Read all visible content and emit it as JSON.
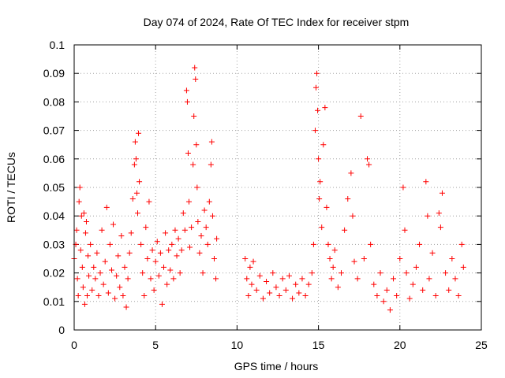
{
  "chart_data": {
    "type": "scatter",
    "title": "Day 074 of 2024, Rate Of TEC Index for receiver stpm",
    "xlabel": "GPS time / hours",
    "ylabel": "ROTI / TECUs",
    "xlim": [
      0,
      25
    ],
    "ylim": [
      0,
      0.1
    ],
    "xticks": [
      0,
      5,
      10,
      15,
      20,
      25
    ],
    "xtick_labels": [
      "0",
      "5",
      "10",
      "15",
      "20",
      "25"
    ],
    "yticks": [
      0,
      0.01,
      0.02,
      0.03,
      0.04,
      0.05,
      0.06,
      0.07,
      0.08,
      0.09,
      0.1
    ],
    "ytick_labels": [
      "0",
      "0.01",
      "0.02",
      "0.03",
      "0.04",
      "0.05",
      "0.06",
      "0.07",
      "0.08",
      "0.09",
      "0.1"
    ],
    "grid": true,
    "marker": "plus",
    "color": "#ff0000",
    "series": [
      {
        "name": "ROTI",
        "points": [
          [
            0.0,
            0.025
          ],
          [
            0.1,
            0.03
          ],
          [
            0.15,
            0.035
          ],
          [
            0.2,
            0.018
          ],
          [
            0.25,
            0.012
          ],
          [
            0.3,
            0.045
          ],
          [
            0.35,
            0.05
          ],
          [
            0.4,
            0.028
          ],
          [
            0.45,
            0.04
          ],
          [
            0.5,
            0.022
          ],
          [
            0.55,
            0.015
          ],
          [
            0.6,
            0.041
          ],
          [
            0.65,
            0.009
          ],
          [
            0.7,
            0.034
          ],
          [
            0.75,
            0.038
          ],
          [
            0.8,
            0.012
          ],
          [
            0.85,
            0.026
          ],
          [
            0.9,
            0.019
          ],
          [
            1.0,
            0.03
          ],
          [
            1.1,
            0.014
          ],
          [
            1.2,
            0.022
          ],
          [
            1.3,
            0.018
          ],
          [
            1.4,
            0.027
          ],
          [
            1.5,
            0.012
          ],
          [
            1.6,
            0.02
          ],
          [
            1.7,
            0.035
          ],
          [
            1.8,
            0.016
          ],
          [
            1.9,
            0.024
          ],
          [
            2.0,
            0.043
          ],
          [
            2.1,
            0.013
          ],
          [
            2.2,
            0.03
          ],
          [
            2.3,
            0.021
          ],
          [
            2.4,
            0.037
          ],
          [
            2.5,
            0.011
          ],
          [
            2.6,
            0.019
          ],
          [
            2.7,
            0.026
          ],
          [
            2.8,
            0.015
          ],
          [
            2.9,
            0.033
          ],
          [
            3.0,
            0.012
          ],
          [
            3.1,
            0.022
          ],
          [
            3.2,
            0.008
          ],
          [
            3.3,
            0.018
          ],
          [
            3.4,
            0.027
          ],
          [
            3.5,
            0.034
          ],
          [
            3.6,
            0.046
          ],
          [
            3.7,
            0.058
          ],
          [
            3.75,
            0.066
          ],
          [
            3.8,
            0.06
          ],
          [
            3.85,
            0.048
          ],
          [
            3.9,
            0.041
          ],
          [
            3.95,
            0.069
          ],
          [
            4.0,
            0.052
          ],
          [
            4.1,
            0.03
          ],
          [
            4.2,
            0.02
          ],
          [
            4.3,
            0.012
          ],
          [
            4.4,
            0.036
          ],
          [
            4.5,
            0.025
          ],
          [
            4.6,
            0.045
          ],
          [
            4.7,
            0.018
          ],
          [
            4.8,
            0.028
          ],
          [
            4.9,
            0.014
          ],
          [
            5.0,
            0.024
          ],
          [
            5.1,
            0.031
          ],
          [
            5.2,
            0.019
          ],
          [
            5.3,
            0.027
          ],
          [
            5.4,
            0.009
          ],
          [
            5.5,
            0.022
          ],
          [
            5.6,
            0.034
          ],
          [
            5.7,
            0.016
          ],
          [
            5.8,
            0.028
          ],
          [
            5.9,
            0.021
          ],
          [
            6.0,
            0.03
          ],
          [
            6.1,
            0.018
          ],
          [
            6.2,
            0.035
          ],
          [
            6.3,
            0.026
          ],
          [
            6.4,
            0.032
          ],
          [
            6.5,
            0.02
          ],
          [
            6.6,
            0.028
          ],
          [
            6.7,
            0.041
          ],
          [
            6.8,
            0.035
          ],
          [
            6.9,
            0.084
          ],
          [
            6.95,
            0.08
          ],
          [
            7.0,
            0.062
          ],
          [
            7.05,
            0.045
          ],
          [
            7.1,
            0.029
          ],
          [
            7.2,
            0.036
          ],
          [
            7.3,
            0.058
          ],
          [
            7.35,
            0.075
          ],
          [
            7.4,
            0.092
          ],
          [
            7.45,
            0.088
          ],
          [
            7.5,
            0.065
          ],
          [
            7.55,
            0.05
          ],
          [
            7.6,
            0.038
          ],
          [
            7.7,
            0.027
          ],
          [
            7.8,
            0.033
          ],
          [
            7.9,
            0.02
          ],
          [
            8.0,
            0.042
          ],
          [
            8.1,
            0.036
          ],
          [
            8.2,
            0.03
          ],
          [
            8.3,
            0.045
          ],
          [
            8.4,
            0.058
          ],
          [
            8.45,
            0.066
          ],
          [
            8.5,
            0.04
          ],
          [
            8.6,
            0.025
          ],
          [
            8.7,
            0.018
          ],
          [
            8.75,
            0.032
          ],
          [
            10.5,
            0.025
          ],
          [
            10.6,
            0.018
          ],
          [
            10.7,
            0.012
          ],
          [
            10.8,
            0.022
          ],
          [
            10.9,
            0.016
          ],
          [
            11.0,
            0.024
          ],
          [
            11.2,
            0.014
          ],
          [
            11.4,
            0.019
          ],
          [
            11.6,
            0.011
          ],
          [
            11.8,
            0.017
          ],
          [
            12.0,
            0.013
          ],
          [
            12.2,
            0.02
          ],
          [
            12.4,
            0.015
          ],
          [
            12.6,
            0.012
          ],
          [
            12.8,
            0.018
          ],
          [
            13.0,
            0.014
          ],
          [
            13.2,
            0.019
          ],
          [
            13.4,
            0.011
          ],
          [
            13.6,
            0.016
          ],
          [
            13.8,
            0.013
          ],
          [
            14.0,
            0.018
          ],
          [
            14.2,
            0.012
          ],
          [
            14.4,
            0.016
          ],
          [
            14.6,
            0.02
          ],
          [
            14.7,
            0.03
          ],
          [
            14.8,
            0.07
          ],
          [
            14.85,
            0.085
          ],
          [
            14.9,
            0.09
          ],
          [
            14.95,
            0.077
          ],
          [
            15.0,
            0.06
          ],
          [
            15.05,
            0.046
          ],
          [
            15.1,
            0.052
          ],
          [
            15.2,
            0.036
          ],
          [
            15.3,
            0.065
          ],
          [
            15.4,
            0.078
          ],
          [
            15.5,
            0.043
          ],
          [
            15.6,
            0.03
          ],
          [
            15.7,
            0.025
          ],
          [
            15.8,
            0.018
          ],
          [
            15.9,
            0.022
          ],
          [
            16.0,
            0.028
          ],
          [
            16.2,
            0.015
          ],
          [
            16.4,
            0.02
          ],
          [
            16.6,
            0.035
          ],
          [
            16.8,
            0.046
          ],
          [
            17.0,
            0.055
          ],
          [
            17.1,
            0.04
          ],
          [
            17.2,
            0.024
          ],
          [
            17.4,
            0.018
          ],
          [
            17.6,
            0.075
          ],
          [
            17.8,
            0.025
          ],
          [
            18.0,
            0.06
          ],
          [
            18.1,
            0.058
          ],
          [
            18.2,
            0.03
          ],
          [
            18.4,
            0.016
          ],
          [
            18.6,
            0.012
          ],
          [
            18.8,
            0.02
          ],
          [
            19.0,
            0.01
          ],
          [
            19.2,
            0.014
          ],
          [
            19.4,
            0.007
          ],
          [
            19.6,
            0.018
          ],
          [
            19.8,
            0.012
          ],
          [
            20.0,
            0.025
          ],
          [
            20.2,
            0.05
          ],
          [
            20.3,
            0.035
          ],
          [
            20.4,
            0.02
          ],
          [
            20.6,
            0.011
          ],
          [
            20.8,
            0.016
          ],
          [
            21.0,
            0.022
          ],
          [
            21.2,
            0.03
          ],
          [
            21.4,
            0.014
          ],
          [
            21.6,
            0.052
          ],
          [
            21.7,
            0.04
          ],
          [
            21.8,
            0.018
          ],
          [
            22.0,
            0.027
          ],
          [
            22.2,
            0.012
          ],
          [
            22.4,
            0.041
          ],
          [
            22.5,
            0.036
          ],
          [
            22.6,
            0.048
          ],
          [
            22.8,
            0.02
          ],
          [
            23.0,
            0.014
          ],
          [
            23.2,
            0.025
          ],
          [
            23.4,
            0.018
          ],
          [
            23.6,
            0.012
          ],
          [
            23.8,
            0.03
          ],
          [
            23.9,
            0.022
          ]
        ]
      }
    ]
  }
}
